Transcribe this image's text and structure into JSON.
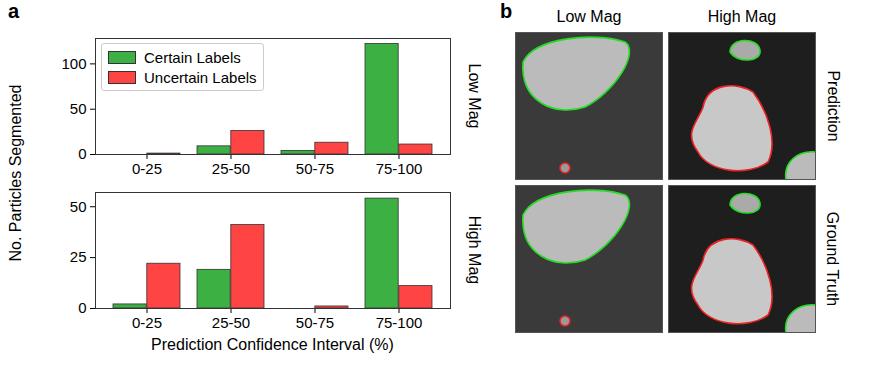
{
  "chart_data": [
    {
      "type": "bar",
      "title": "Low Mag",
      "categories": [
        "0-25",
        "25-50",
        "50-75",
        "75-100"
      ],
      "series": [
        {
          "name": "Certain Labels",
          "color": "#3cb043",
          "values": [
            0,
            9,
            4,
            122
          ]
        },
        {
          "name": "Uncertain Labels",
          "color": "#ff4444",
          "values": [
            1,
            26,
            13,
            11
          ]
        }
      ],
      "ylim": [
        0,
        128
      ],
      "yticks": [
        0,
        50,
        100
      ],
      "legend": "top-left"
    },
    {
      "type": "bar",
      "title": "High Mag",
      "categories": [
        "0-25",
        "25-50",
        "50-75",
        "75-100"
      ],
      "series": [
        {
          "name": "Certain Labels",
          "color": "#3cb043",
          "values": [
            2,
            19,
            0,
            54
          ]
        },
        {
          "name": "Uncertain Labels",
          "color": "#ff4444",
          "values": [
            22,
            41,
            1,
            11
          ]
        }
      ],
      "ylim": [
        0,
        57
      ],
      "yticks": [
        0,
        25,
        50
      ],
      "x_label": "Prediction Confidence Interval (%)",
      "y_label": "No. Particles Segmented"
    }
  ],
  "panel_labels": [
    "a",
    "b"
  ],
  "images": {
    "columns": [
      "Low Mag",
      "High Mag"
    ],
    "rows": [
      "Prediction",
      "Ground Truth"
    ]
  }
}
